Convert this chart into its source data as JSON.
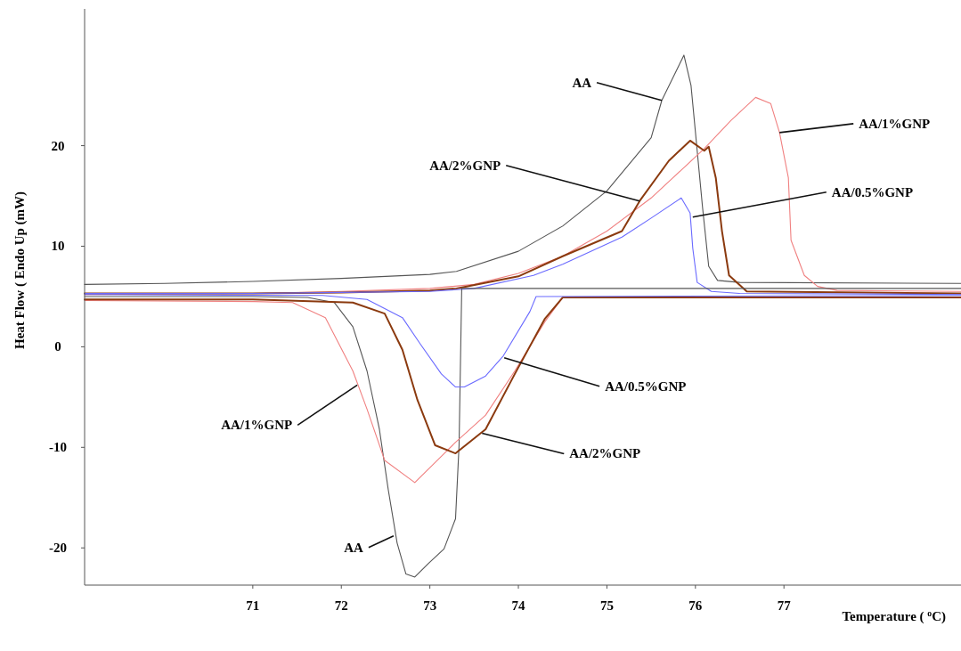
{
  "chart_data": {
    "type": "line",
    "xlabel": "Temperature ( $^{o}$C)",
    "ylabel": "Heat Flow ( Endo Up (mW)",
    "xlim": [
      69.1,
      79
    ],
    "ylim": [
      -23.7,
      33.6
    ],
    "xticks": [
      71,
      72,
      73,
      74,
      75,
      76,
      77
    ],
    "yticks": [
      -20,
      -10,
      0,
      10,
      20
    ],
    "series": [
      {
        "color": "#555555",
        "x": [
          69.1,
          70,
          71,
          72,
          73,
          73.3,
          74,
          74.5,
          75,
          75.5,
          75.62,
          75.87,
          75.95,
          76.08,
          76.15,
          76.25,
          76.5,
          79
        ],
        "values": [
          6.2,
          6.3,
          6.5,
          6.8,
          7.2,
          7.5,
          9.5,
          12,
          15.5,
          20.8,
          24.5,
          29,
          26,
          13.9,
          8,
          6.6,
          6.4,
          6.3
        ]
      },
      {
        "color": "#f08080",
        "x": [
          69.1,
          71,
          72,
          73,
          73.5,
          74,
          74.5,
          75,
          75.5,
          76.1,
          76.4,
          76.68,
          76.85,
          76.95,
          77.05,
          77.08,
          77.23,
          77.38,
          77.6,
          79
        ],
        "values": [
          5.2,
          5.3,
          5.5,
          5.8,
          6.2,
          7.3,
          9,
          11.5,
          14.8,
          19.7,
          22.5,
          24.8,
          24.2,
          21.3,
          16.8,
          10.6,
          7.1,
          6,
          5.6,
          5.5
        ]
      },
      {
        "color": "#8b3a0f",
        "x": [
          69.1,
          71,
          72,
          73,
          73.3,
          74,
          74.5,
          75.17,
          75.37,
          75.7,
          75.94,
          76.1,
          76.15,
          76.23,
          76.3,
          76.38,
          76.58,
          79
        ],
        "values": [
          5.3,
          5.3,
          5.4,
          5.6,
          5.8,
          7,
          9,
          11.5,
          14.5,
          18.5,
          20.5,
          19.5,
          19.9,
          16.8,
          11.5,
          7.1,
          5.5,
          5.3
        ]
      },
      {
        "color": "#6a6aff",
        "x": [
          69.1,
          71,
          72,
          73,
          73.5,
          74.17,
          74.5,
          75.17,
          75.5,
          75.84,
          75.94,
          75.97,
          76.02,
          76.18,
          76.5,
          79
        ],
        "values": [
          5.3,
          5.3,
          5.4,
          5.5,
          5.8,
          7.1,
          8.2,
          10.9,
          12.8,
          14.8,
          13.3,
          9.8,
          6.4,
          5.5,
          5.3,
          5.2
        ]
      },
      {
        "color": "#555555",
        "x": [
          69.1,
          71,
          71.62,
          71.92,
          72.13,
          72.29,
          72.43,
          72.53,
          72.63,
          72.73,
          72.83,
          72.99,
          73.16,
          73.29,
          73.33,
          73.36,
          79
        ],
        "values": [
          5,
          5,
          4.9,
          4.4,
          2,
          -2.4,
          -8.2,
          -14.2,
          -19.5,
          -22.6,
          -22.9,
          -21.5,
          -20.1,
          -17.1,
          -9.8,
          5.8,
          5.8
        ]
      },
      {
        "color": "#f08080",
        "x": [
          69.1,
          71.02,
          71.45,
          71.82,
          72.13,
          72.29,
          72.49,
          72.83,
          73.29,
          73.63,
          73.96,
          74.3,
          74.5,
          79
        ],
        "values": [
          4.6,
          4.5,
          4.4,
          2.9,
          -2.4,
          -6.2,
          -11.3,
          -13.5,
          -9.5,
          -6.8,
          -2.4,
          2.5,
          4.9,
          4.9
        ]
      },
      {
        "color": "#8b3a0f",
        "x": [
          69.1,
          71,
          72.13,
          72.49,
          72.69,
          72.86,
          73.06,
          73.29,
          73.63,
          73.96,
          74.3,
          74.5,
          79
        ],
        "values": [
          4.7,
          4.7,
          4.4,
          3.3,
          -0.3,
          -5.3,
          -9.8,
          -10.6,
          -8.2,
          -2.7,
          2.8,
          4.9,
          4.9
        ]
      },
      {
        "color": "#6a6aff",
        "x": [
          69.1,
          71.79,
          72.29,
          72.69,
          72.89,
          73.13,
          73.29,
          73.39,
          73.63,
          73.83,
          74.13,
          74.2,
          79
        ],
        "values": [
          5.2,
          5.1,
          4.7,
          2.9,
          0.3,
          -2.7,
          -4,
          -4,
          -2.9,
          -0.9,
          3.5,
          5,
          5.1
        ]
      }
    ],
    "annotations": [
      {
        "text": "AA",
        "x": 75.62,
        "y": 24.5
      },
      {
        "text": "AA/1%GNP",
        "x": 76.95,
        "y": 21.3
      },
      {
        "text": "AA/2%GNP",
        "x": 75.37,
        "y": 14.5
      },
      {
        "text": "AA/0.5%GNP",
        "x": 75.97,
        "y": 12.9
      },
      {
        "text": "AA/0.5%GNP",
        "x": 73.84,
        "y": -1.1
      },
      {
        "text": "AA/1%GNP",
        "x": 72.18,
        "y": -3.8
      },
      {
        "text": "AA/2%GNP",
        "x": 73.59,
        "y": -8.6
      },
      {
        "text": "AA",
        "x": 72.59,
        "y": -18.8
      }
    ]
  }
}
